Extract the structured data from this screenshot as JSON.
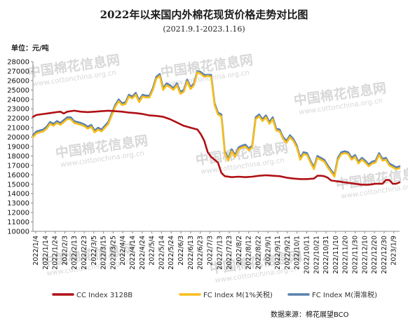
{
  "chart_data": {
    "type": "line",
    "title": "2022年以来国内外棉花现货价格走势对比图",
    "subtitle": "(2021.9.1-2023.1.16)",
    "ylabel": "单位：元/吨",
    "ylim": [
      10000,
      28000
    ],
    "yticks": [
      10000,
      11000,
      12000,
      13000,
      14000,
      15000,
      16000,
      17000,
      18000,
      19000,
      20000,
      21000,
      22000,
      23000,
      24000,
      25000,
      26000,
      27000,
      28000
    ],
    "xticks": [
      "2022/1/4",
      "2022/1/14",
      "2022/1/24",
      "2022/2/3",
      "2022/2/13",
      "2022/2/23",
      "2022/3/5",
      "2022/3/15",
      "2022/3/25",
      "2022/4/4",
      "2022/4/14",
      "2022/4/24",
      "2022/5/4",
      "2022/5/14",
      "2022/5/24",
      "2022/6/3",
      "2022/6/13",
      "2022/6/23",
      "2022/7/3",
      "2022/7/13",
      "2022/7/23",
      "2022/8/2",
      "2022/8/12",
      "2022/8/22",
      "2022/9/1",
      "2022/9/11",
      "2022/9/21",
      "2022/10/1",
      "2022/10/11",
      "2022/10/21",
      "2022/10/31",
      "2022/11/10",
      "2022/11/20",
      "2022/11/30",
      "2022/12/10",
      "2022/12/20",
      "2022/12/30",
      "2023/1/9"
    ],
    "grid": false,
    "legend_position": "bottom",
    "series": [
      {
        "name": "CC Index 3128B",
        "color": "#b01015",
        "points": [
          [
            0,
            22150
          ],
          [
            1,
            22350
          ],
          [
            3,
            22450
          ],
          [
            5,
            22550
          ],
          [
            7,
            22650
          ],
          [
            8,
            22700
          ],
          [
            9,
            22500
          ],
          [
            10,
            22700
          ],
          [
            12,
            22800
          ],
          [
            14,
            22700
          ],
          [
            16,
            22650
          ],
          [
            18,
            22700
          ],
          [
            20,
            22750
          ],
          [
            22,
            22800
          ],
          [
            24,
            22750
          ],
          [
            26,
            22700
          ],
          [
            28,
            22600
          ],
          [
            30,
            22550
          ],
          [
            32,
            22450
          ],
          [
            34,
            22300
          ],
          [
            36,
            22250
          ],
          [
            38,
            22150
          ],
          [
            40,
            21900
          ],
          [
            42,
            21550
          ],
          [
            44,
            21200
          ],
          [
            46,
            21000
          ],
          [
            48,
            20800
          ],
          [
            49,
            20300
          ],
          [
            50,
            19600
          ],
          [
            51,
            18400
          ],
          [
            52,
            17900
          ],
          [
            54,
            17300
          ],
          [
            55,
            16200
          ],
          [
            56,
            15850
          ],
          [
            58,
            15750
          ],
          [
            60,
            15800
          ],
          [
            62,
            15750
          ],
          [
            64,
            15800
          ],
          [
            66,
            15900
          ],
          [
            68,
            15950
          ],
          [
            70,
            15900
          ],
          [
            72,
            15850
          ],
          [
            74,
            15700
          ],
          [
            76,
            15600
          ],
          [
            78,
            15550
          ],
          [
            80,
            15550
          ],
          [
            82,
            15600
          ],
          [
            83,
            15900
          ],
          [
            84,
            15900
          ],
          [
            85,
            15850
          ],
          [
            86,
            15700
          ],
          [
            87,
            15400
          ],
          [
            88,
            15350
          ],
          [
            90,
            15250
          ],
          [
            92,
            15150
          ],
          [
            94,
            15050
          ],
          [
            96,
            14950
          ],
          [
            98,
            14950
          ],
          [
            100,
            15050
          ],
          [
            102,
            15050
          ],
          [
            103,
            15450
          ],
          [
            104,
            15450
          ],
          [
            105,
            15050
          ],
          [
            106,
            15050
          ],
          [
            107,
            15200
          ]
        ]
      },
      {
        "name": "FC Index M(1%关税)",
        "color": "#f7be1c",
        "points": [
          [
            0,
            20000
          ],
          [
            1,
            20400
          ],
          [
            2,
            20500
          ],
          [
            3,
            20600
          ],
          [
            4,
            20900
          ],
          [
            5,
            21400
          ],
          [
            6,
            21200
          ],
          [
            7,
            21500
          ],
          [
            8,
            21300
          ],
          [
            10,
            21900
          ],
          [
            11,
            21900
          ],
          [
            12,
            21500
          ],
          [
            14,
            21300
          ],
          [
            15,
            21150
          ],
          [
            16,
            20900
          ],
          [
            17,
            21100
          ],
          [
            18,
            20500
          ],
          [
            19,
            20800
          ],
          [
            20,
            20600
          ],
          [
            21,
            21000
          ],
          [
            22,
            21400
          ],
          [
            23,
            22300
          ],
          [
            24,
            23200
          ],
          [
            25,
            23800
          ],
          [
            26,
            23400
          ],
          [
            27,
            23500
          ],
          [
            28,
            24300
          ],
          [
            29,
            24100
          ],
          [
            30,
            24500
          ],
          [
            31,
            23700
          ],
          [
            32,
            24300
          ],
          [
            33,
            24200
          ],
          [
            34,
            24200
          ],
          [
            35,
            25000
          ],
          [
            36,
            26200
          ],
          [
            37,
            26500
          ],
          [
            38,
            25000
          ],
          [
            39,
            25500
          ],
          [
            40,
            25300
          ],
          [
            41,
            25000
          ],
          [
            42,
            25500
          ],
          [
            43,
            24600
          ],
          [
            44,
            24800
          ],
          [
            45,
            25900
          ],
          [
            46,
            25100
          ],
          [
            47,
            25500
          ],
          [
            48,
            26900
          ],
          [
            49,
            26700
          ],
          [
            50,
            26400
          ],
          [
            51,
            26500
          ],
          [
            52,
            26400
          ],
          [
            53,
            23400
          ],
          [
            54,
            22400
          ],
          [
            55,
            22200
          ],
          [
            56,
            18300
          ],
          [
            57,
            17500
          ],
          [
            58,
            18500
          ],
          [
            59,
            17900
          ],
          [
            60,
            18700
          ],
          [
            61,
            18900
          ],
          [
            62,
            19000
          ],
          [
            63,
            18600
          ],
          [
            64,
            18900
          ],
          [
            65,
            21900
          ],
          [
            66,
            22200
          ],
          [
            67,
            21700
          ],
          [
            68,
            22100
          ],
          [
            69,
            21400
          ],
          [
            70,
            21900
          ],
          [
            71,
            20700
          ],
          [
            72,
            20600
          ],
          [
            73,
            19800
          ],
          [
            74,
            19400
          ],
          [
            75,
            20000
          ],
          [
            76,
            19600
          ],
          [
            77,
            18900
          ],
          [
            78,
            17600
          ],
          [
            79,
            18200
          ],
          [
            80,
            18100
          ],
          [
            81,
            17300
          ],
          [
            82,
            16600
          ],
          [
            83,
            17800
          ],
          [
            84,
            17600
          ],
          [
            85,
            17400
          ],
          [
            86,
            16800
          ],
          [
            87,
            16300
          ],
          [
            88,
            15800
          ],
          [
            89,
            17600
          ],
          [
            90,
            18200
          ],
          [
            91,
            18300
          ],
          [
            92,
            18200
          ],
          [
            93,
            17600
          ],
          [
            94,
            17900
          ],
          [
            95,
            17200
          ],
          [
            96,
            17600
          ],
          [
            97,
            17300
          ],
          [
            98,
            16900
          ],
          [
            99,
            17200
          ],
          [
            100,
            17300
          ],
          [
            101,
            18100
          ],
          [
            102,
            17500
          ],
          [
            103,
            17600
          ],
          [
            104,
            17000
          ],
          [
            105,
            16800
          ],
          [
            106,
            16600
          ],
          [
            107,
            16700
          ]
        ]
      },
      {
        "name": "FC Index M(滑准税)",
        "color": "#5b80ad",
        "points": [
          [
            0,
            20200
          ],
          [
            1,
            20600
          ],
          [
            2,
            20700
          ],
          [
            3,
            20800
          ],
          [
            4,
            21100
          ],
          [
            5,
            21600
          ],
          [
            6,
            21400
          ],
          [
            7,
            21700
          ],
          [
            8,
            21500
          ],
          [
            10,
            22100
          ],
          [
            11,
            22100
          ],
          [
            12,
            21700
          ],
          [
            14,
            21500
          ],
          [
            15,
            21350
          ],
          [
            16,
            21100
          ],
          [
            17,
            21300
          ],
          [
            18,
            20700
          ],
          [
            19,
            21000
          ],
          [
            20,
            20800
          ],
          [
            21,
            21200
          ],
          [
            22,
            21600
          ],
          [
            23,
            22500
          ],
          [
            24,
            23400
          ],
          [
            25,
            24000
          ],
          [
            26,
            23600
          ],
          [
            27,
            23700
          ],
          [
            28,
            24500
          ],
          [
            29,
            24300
          ],
          [
            30,
            24700
          ],
          [
            31,
            23900
          ],
          [
            32,
            24500
          ],
          [
            33,
            24400
          ],
          [
            34,
            24400
          ],
          [
            35,
            25200
          ],
          [
            36,
            26400
          ],
          [
            37,
            26700
          ],
          [
            38,
            25200
          ],
          [
            39,
            25700
          ],
          [
            40,
            25500
          ],
          [
            41,
            25200
          ],
          [
            42,
            25700
          ],
          [
            43,
            24800
          ],
          [
            44,
            25000
          ],
          [
            45,
            26100
          ],
          [
            46,
            25300
          ],
          [
            47,
            25700
          ],
          [
            48,
            27000
          ],
          [
            49,
            26900
          ],
          [
            50,
            26600
          ],
          [
            51,
            26600
          ],
          [
            52,
            26600
          ],
          [
            53,
            23600
          ],
          [
            54,
            22600
          ],
          [
            55,
            22400
          ],
          [
            56,
            18500
          ],
          [
            57,
            17700
          ],
          [
            58,
            18700
          ],
          [
            59,
            18100
          ],
          [
            60,
            18900
          ],
          [
            61,
            19100
          ],
          [
            62,
            19200
          ],
          [
            63,
            18800
          ],
          [
            64,
            19100
          ],
          [
            65,
            22100
          ],
          [
            66,
            22400
          ],
          [
            67,
            21900
          ],
          [
            68,
            22300
          ],
          [
            69,
            21600
          ],
          [
            70,
            22100
          ],
          [
            71,
            20900
          ],
          [
            72,
            20800
          ],
          [
            73,
            20000
          ],
          [
            74,
            19600
          ],
          [
            75,
            20200
          ],
          [
            76,
            19800
          ],
          [
            77,
            19100
          ],
          [
            78,
            17800
          ],
          [
            79,
            18400
          ],
          [
            80,
            18300
          ],
          [
            81,
            17500
          ],
          [
            82,
            16800
          ],
          [
            83,
            18000
          ],
          [
            84,
            17800
          ],
          [
            85,
            17600
          ],
          [
            86,
            17000
          ],
          [
            87,
            16500
          ],
          [
            88,
            16000
          ],
          [
            89,
            17800
          ],
          [
            90,
            18400
          ],
          [
            91,
            18500
          ],
          [
            92,
            18400
          ],
          [
            93,
            17800
          ],
          [
            94,
            18100
          ],
          [
            95,
            17400
          ],
          [
            96,
            17800
          ],
          [
            97,
            17500
          ],
          [
            98,
            17100
          ],
          [
            99,
            17400
          ],
          [
            100,
            17500
          ],
          [
            101,
            18300
          ],
          [
            102,
            17700
          ],
          [
            103,
            17800
          ],
          [
            104,
            17200
          ],
          [
            105,
            17000
          ],
          [
            106,
            16800
          ],
          [
            107,
            16900
          ]
        ]
      }
    ]
  },
  "source": "数据来源：棉花展望BCO",
  "watermark": {
    "main": "中国棉花信息网",
    "url": "www.cottonchina.org.cn",
    "logo_text": "BCO"
  }
}
